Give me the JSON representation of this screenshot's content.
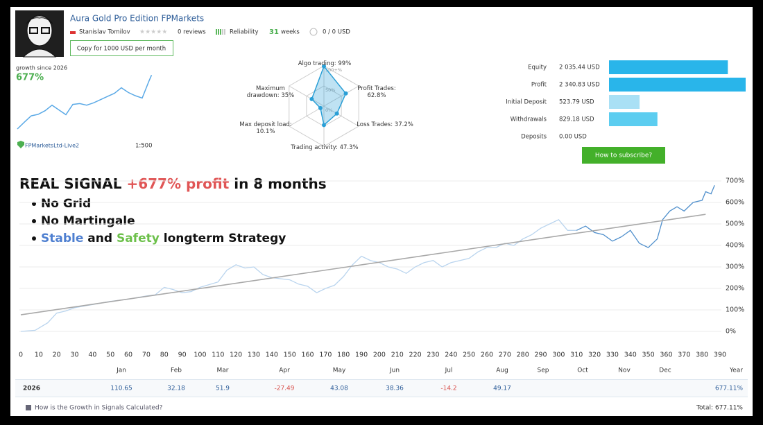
{
  "header": {
    "title": "Aura Gold Pro Edition FPMarkets",
    "author": "Stanislav Tomilov",
    "reviews": "0 reviews",
    "reliability": "Reliability",
    "weeks": "31",
    "weeks_unit": "weeks",
    "funds": "0 / 0 USD",
    "copy_button": "Copy for 1000 USD per month"
  },
  "growth_summary": {
    "label": "growth since 2026",
    "value": "677%",
    "broker": "FPMarketsLtd-Live2",
    "leverage": "1:500"
  },
  "subscribe_button": "How to subscribe?",
  "promo": {
    "headline_start": "REAL SIGNAL ",
    "headline_highlight": "+677% profit",
    "headline_end": " in 8 months",
    "bullet_1": "No Grid",
    "bullet_2": "No Martingale",
    "bullet_3_stable": "Stable",
    "bullet_3_and": " and ",
    "bullet_3_safety": "Safety",
    "bullet_3_rest": " longterm Strategy"
  },
  "chart_data": [
    {
      "type": "line",
      "color": "#5aa9e6",
      "x": [
        0,
        20,
        40,
        60,
        80,
        100,
        120,
        140,
        160,
        180,
        200,
        220,
        240,
        260,
        280,
        300,
        320,
        340,
        360,
        380,
        387
      ],
      "values": [
        0,
        85,
        165,
        185,
        230,
        300,
        240,
        180,
        310,
        320,
        300,
        330,
        370,
        410,
        450,
        520,
        460,
        420,
        390,
        610,
        680
      ],
      "xlim": [
        0,
        390
      ],
      "ylim": [
        0,
        700
      ]
    },
    {
      "type": "radar",
      "color": "#2a9fd6",
      "axes": [
        {
          "label": "Algo trading: 99%",
          "value": 99
        },
        {
          "label": "Profit Trades: 62.8%",
          "value": 62.8
        },
        {
          "label": "Loss Trades: 37.2%",
          "value": 37.2
        },
        {
          "label": "Trading activity: 47.3%",
          "value": 47.3
        },
        {
          "label": "Max deposit load: 10.1%",
          "value": 10.1
        },
        {
          "label": "Maximum drawdown: 35%",
          "value": 35
        }
      ],
      "rlim": [
        0,
        100
      ],
      "rticks": [
        {
          "value": 100,
          "label": "100+%"
        },
        {
          "value": 50,
          "label": "50%"
        },
        {
          "value": 0,
          "label": "0%"
        }
      ]
    },
    {
      "type": "hbar",
      "categories": [
        "Equity",
        "Profit",
        "Initial Deposit",
        "Withdrawals",
        "Deposits"
      ],
      "values": [
        2035.44,
        2340.83,
        523.79,
        829.18,
        0.0
      ],
      "value_labels": [
        "2 035.44 USD",
        "2 340.83 USD",
        "523.79 USD",
        "829.18 USD",
        "0.00 USD"
      ],
      "colors": [
        "#29b5ea",
        "#29b5ea",
        "#a9e0f5",
        "#5ccdf0",
        "#5ccdf0"
      ],
      "xlim": [
        0,
        2340.83
      ]
    },
    {
      "type": "line",
      "grid": true,
      "series": [
        {
          "color": "#b9d4ee",
          "x": [
            0,
            8,
            15,
            20,
            25,
            30,
            40,
            50,
            60,
            70,
            75,
            80,
            85,
            90,
            95,
            100,
            110,
            115,
            120,
            125,
            130,
            135,
            140,
            150,
            155,
            160,
            165,
            170,
            175,
            180,
            185,
            190,
            195,
            200,
            205,
            210,
            215,
            220,
            225,
            230,
            235,
            240,
            245,
            250,
            255,
            260,
            265,
            270,
            275,
            280,
            285,
            290,
            295,
            300,
            305,
            310
          ],
          "values": [
            0,
            5,
            40,
            85,
            95,
            110,
            125,
            140,
            150,
            165,
            170,
            205,
            195,
            180,
            185,
            205,
            230,
            285,
            310,
            295,
            300,
            265,
            250,
            240,
            220,
            210,
            180,
            200,
            215,
            255,
            310,
            350,
            330,
            320,
            300,
            290,
            270,
            300,
            320,
            330,
            300,
            320,
            330,
            340,
            370,
            390,
            390,
            410,
            400,
            430,
            450,
            480,
            500,
            520,
            470,
            470
          ]
        },
        {
          "color": "#4f8fcc",
          "x": [
            310,
            315,
            320,
            325,
            330,
            335,
            340,
            345,
            350,
            355,
            358,
            362,
            366,
            370,
            375,
            380,
            382,
            385,
            387
          ],
          "values": [
            470,
            490,
            460,
            450,
            420,
            440,
            470,
            410,
            390,
            430,
            520,
            560,
            580,
            560,
            600,
            610,
            650,
            640,
            680
          ]
        },
        {
          "color": "#a8a8a8",
          "x": [
            0,
            382
          ],
          "values": [
            77,
            545
          ]
        }
      ],
      "xlim": [
        0,
        390
      ],
      "xticks": [
        0,
        10,
        20,
        30,
        40,
        50,
        60,
        70,
        80,
        90,
        100,
        110,
        120,
        130,
        140,
        150,
        160,
        170,
        180,
        190,
        200,
        210,
        220,
        230,
        240,
        250,
        260,
        270,
        280,
        290,
        300,
        310,
        320,
        330,
        340,
        350,
        360,
        370,
        380,
        390
      ],
      "ylim": [
        0,
        700
      ],
      "yticks": [
        {
          "value": 0,
          "label": "0%"
        },
        {
          "value": 100,
          "label": "100%"
        },
        {
          "value": 200,
          "label": "200%"
        },
        {
          "value": 300,
          "label": "300%"
        },
        {
          "value": 400,
          "label": "400%"
        },
        {
          "value": 500,
          "label": "500%"
        },
        {
          "value": 600,
          "label": "600%"
        },
        {
          "value": 700,
          "label": "700%"
        }
      ]
    }
  ],
  "table": {
    "months": [
      "Jan",
      "Feb",
      "Mar",
      "Apr",
      "May",
      "Jun",
      "Jul",
      "Aug",
      "Sep",
      "Oct",
      "Nov",
      "Dec"
    ],
    "year_label": "Year",
    "rows": [
      {
        "year": "2026",
        "values": [
          110.65,
          32.18,
          51.9,
          -27.49,
          43.08,
          38.36,
          -14.2,
          49.17,
          null,
          null,
          null,
          null
        ],
        "total": "677.11%"
      }
    ]
  },
  "footer": {
    "link": "How is the Growth in Signals Calculated?",
    "total": "Total: 677.11%"
  }
}
